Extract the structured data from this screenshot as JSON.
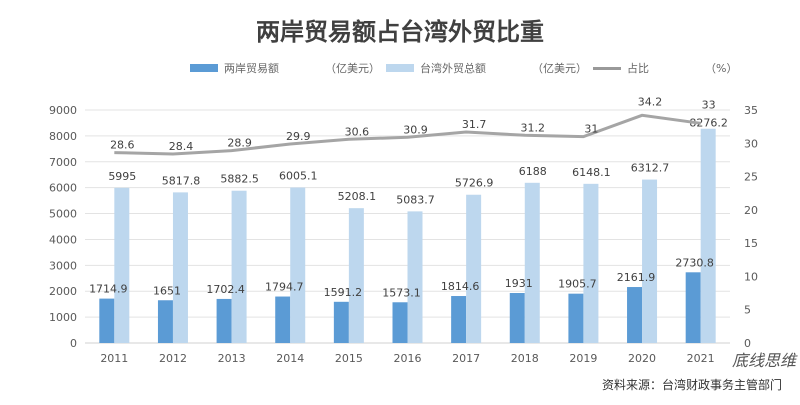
{
  "chart_data": {
    "type": "bar",
    "title": "两岸贸易额占台湾外贸比重",
    "categories": [
      "2011",
      "2012",
      "2013",
      "2014",
      "2015",
      "2016",
      "2017",
      "2018",
      "2019",
      "2020",
      "2021"
    ],
    "series": [
      {
        "name": "两岸贸易额",
        "unit": "（亿美元）",
        "type": "bar",
        "axis": "left",
        "color": "#5b9bd5",
        "values": [
          1714.9,
          1651,
          1702.4,
          1794.7,
          1591.2,
          1573.1,
          1814.6,
          1931,
          1905.7,
          2161.9,
          2730.8
        ]
      },
      {
        "name": "台湾外贸总额",
        "unit": "（亿美元）",
        "type": "bar",
        "axis": "left",
        "color": "#bdd7ee",
        "values": [
          5995,
          5817.8,
          5882.5,
          6005.1,
          5208.1,
          5083.7,
          5726.9,
          6188,
          6148.1,
          6312.7,
          8276.2
        ]
      },
      {
        "name": "占比",
        "unit": "（%）",
        "type": "line",
        "axis": "right",
        "color": "#a5a5a5",
        "values": [
          28.6,
          28.4,
          28.9,
          29.9,
          30.6,
          30.9,
          31.7,
          31.2,
          31,
          34.2,
          33
        ]
      }
    ],
    "ylim_left": [
      0,
      9000
    ],
    "yticks_left": [
      0,
      1000,
      2000,
      3000,
      4000,
      5000,
      6000,
      7000,
      8000,
      9000
    ],
    "ylim_right": [
      0,
      35
    ],
    "yticks_right": [
      0,
      5,
      10,
      15,
      20,
      25,
      30,
      35
    ],
    "grid": true,
    "legend": "top"
  },
  "source": "资料来源：台湾财政事务主管部门",
  "watermark": "底线思维"
}
